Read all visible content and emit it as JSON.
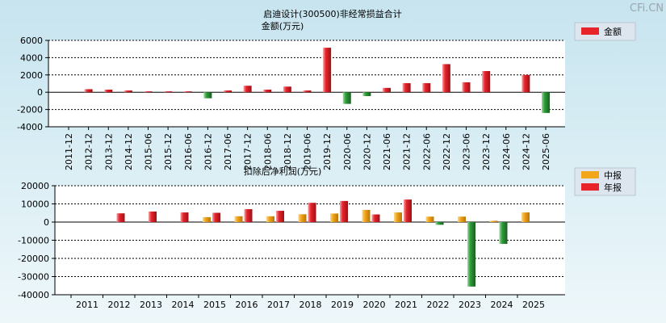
{
  "watermark": "CFi.CN",
  "colors": {
    "red": "#e8232a",
    "green": "#2f9e3a",
    "orange": "#f2a61a",
    "grid": "#000000"
  },
  "chart_data": [
    {
      "type": "bar",
      "title": "启迪设计(300500)非经常损益合计",
      "subtitle": "金额(万元)",
      "legend": [
        "金额"
      ],
      "legend_position": "right",
      "ylim": [
        -4000,
        6000
      ],
      "yticks": [
        "6000",
        "4000",
        "2000",
        "0",
        "-2000",
        "-4000"
      ],
      "grid": true,
      "categories": [
        "2011-12",
        "2012-12",
        "2013-12",
        "2014-12",
        "2015-06",
        "2015-12",
        "2016-06",
        "2016-12",
        "2017-06",
        "2017-12",
        "2018-06",
        "2018-12",
        "2019-06",
        "2019-12",
        "2020-06",
        "2020-12",
        "2021-06",
        "2021-12",
        "2022-06",
        "2022-12",
        "2023-06",
        "2023-12",
        "2024-06",
        "2024-12",
        "2025-06"
      ],
      "series": [
        {
          "name": "金额",
          "values": [
            0,
            350,
            300,
            200,
            100,
            100,
            100,
            -700,
            200,
            750,
            300,
            650,
            200,
            5150,
            -1350,
            -450,
            500,
            1050,
            1050,
            3250,
            1150,
            2450,
            0,
            2000,
            -2400
          ]
        }
      ]
    },
    {
      "type": "bar",
      "title": "扣除后净利润(万元)",
      "legend": [
        "中报",
        "年报"
      ],
      "legend_position": "right",
      "ylim": [
        -40000,
        20000
      ],
      "yticks": [
        "20000",
        "10000",
        "0",
        "-10000",
        "-20000",
        "-30000",
        "-40000"
      ],
      "grid": true,
      "categories": [
        "2011",
        "2012",
        "2013",
        "2014",
        "2015",
        "2016",
        "2017",
        "2018",
        "2019",
        "2020",
        "2021",
        "2022",
        "2023",
        "2024",
        "2025"
      ],
      "series": [
        {
          "name": "中报",
          "values": [
            null,
            null,
            null,
            null,
            2700,
            3200,
            3200,
            4300,
            4700,
            6700,
            5300,
            3000,
            3000,
            700,
            5300
          ]
        },
        {
          "name": "年报",
          "values": [
            null,
            4800,
            5800,
            5300,
            5100,
            7100,
            6200,
            10600,
            11600,
            4200,
            12400,
            -1500,
            -35500,
            -12000,
            null
          ]
        }
      ]
    }
  ]
}
